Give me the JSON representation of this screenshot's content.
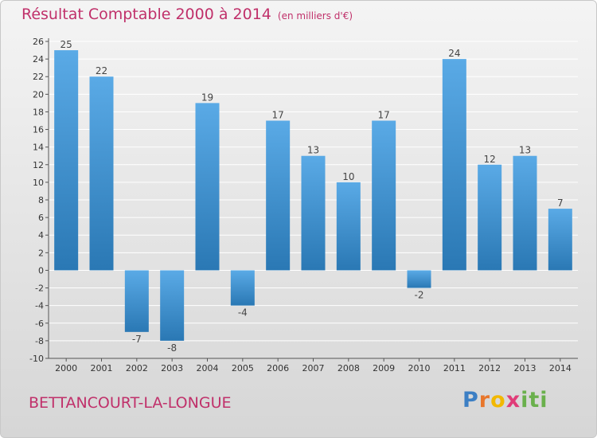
{
  "header": {
    "title": "Résultat Comptable 2000 à 2014",
    "unit": "(en milliers d'€)"
  },
  "footer": {
    "commune": "BETTANCOURT-LA-LONGUE",
    "logo": [
      "P",
      "r",
      "o",
      "x",
      "iti"
    ]
  },
  "colors": {
    "title": "#c0306a",
    "bar_top": "#5aaae6",
    "bar_bottom": "#2a78b4",
    "grid": "#ffffff"
  },
  "chart_data": {
    "type": "bar",
    "title": "Résultat Comptable 2000 à 2014",
    "xlabel": "",
    "ylabel": "",
    "categories": [
      "2000",
      "2001",
      "2002",
      "2003",
      "2004",
      "2005",
      "2006",
      "2007",
      "2008",
      "2009",
      "2010",
      "2011",
      "2012",
      "2013",
      "2014"
    ],
    "values": [
      25,
      22,
      -7,
      -8,
      19,
      -4,
      17,
      13,
      10,
      17,
      -2,
      24,
      12,
      13,
      7
    ],
    "ylim": [
      -10,
      26
    ],
    "yticks": [
      26,
      24,
      22,
      20,
      18,
      16,
      14,
      12,
      10,
      8,
      6,
      4,
      2,
      0,
      -2,
      -4,
      -6,
      -8,
      -10
    ],
    "grid": true
  }
}
